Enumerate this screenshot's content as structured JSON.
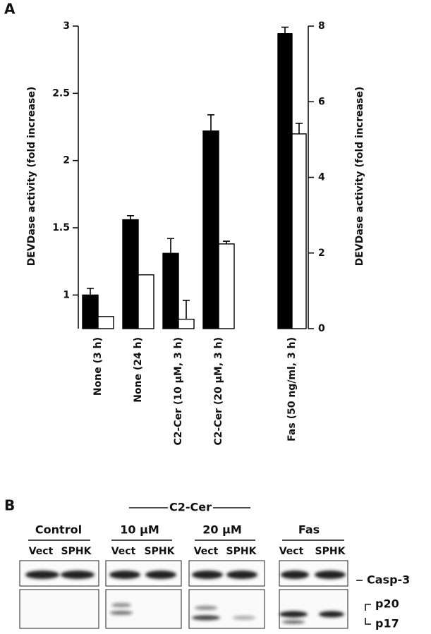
{
  "panel_labels": [
    "A",
    "B"
  ],
  "chart_data": [
    {
      "type": "bar",
      "y_label": "DEVDase activity (fold increase)",
      "categories": [
        "None (3 h)",
        "None (24 h)",
        "C2-Cer (10 µM, 3 h)",
        "C2-Cer (20 µM, 3 h)"
      ],
      "series": [
        {
          "color": "#000000",
          "values": [
            1.0,
            1.56,
            1.31,
            2.22
          ],
          "errors": [
            0.05,
            0.03,
            0.11,
            0.12
          ]
        },
        {
          "color": "#ffffff",
          "values": [
            0.84,
            1.15,
            0.82,
            1.38
          ],
          "errors": [
            null,
            null,
            0.14,
            0.02
          ]
        }
      ],
      "ylim": [
        0.75,
        3
      ],
      "yticks": [
        1,
        1.5,
        2,
        2.5,
        3
      ],
      "axis_side": "left"
    },
    {
      "type": "bar",
      "y_label": "DEVDase activity (fold increase)",
      "categories": [
        "Fas (50 ng/ml, 3 h)"
      ],
      "series": [
        {
          "color": "#000000",
          "values": [
            7.8
          ],
          "errors": [
            0.17
          ]
        },
        {
          "color": "#ffffff",
          "values": [
            5.15
          ],
          "errors": [
            0.28
          ]
        }
      ],
      "ylim": [
        0,
        8
      ],
      "yticks": [
        0,
        2,
        4,
        6,
        8
      ],
      "axis_side": "right"
    }
  ],
  "blot": {
    "treatment": "C2-Cer",
    "groups": [
      "Control",
      "10 µM",
      "20 µM",
      "Fas"
    ],
    "lanes": [
      "Vect",
      "SPHK",
      "Vect",
      "SPHK",
      "Vect",
      "SPHK",
      "Vect",
      "SPHK"
    ],
    "band_labels": [
      "Casp-3",
      "p20",
      "p17"
    ]
  }
}
